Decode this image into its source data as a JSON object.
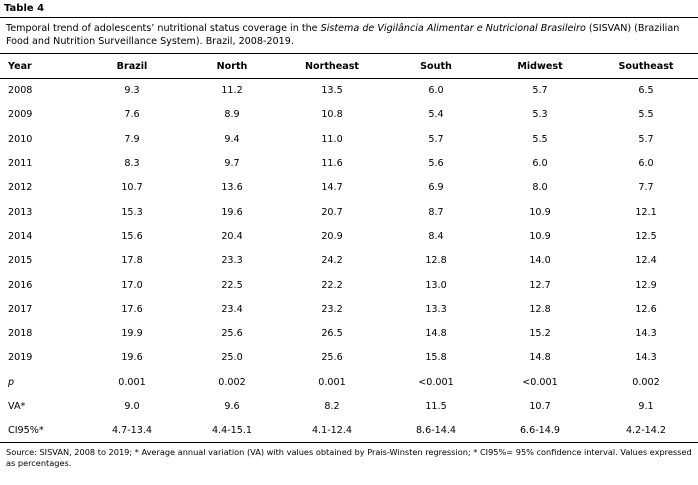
{
  "table_label": "Table 4",
  "caption": {
    "before": "Temporal trend of adolescents’ nutritional status coverage in the ",
    "italic": "Sistema de Vigilância Alimentar e Nutricional Brasileiro",
    "after": " (SISVAN) (Brazilian Food and Nutrition Surveillance System). Brazil, 2008-2019."
  },
  "columns": [
    "Year",
    "Brazil",
    "North",
    "Northeast",
    "South",
    "Midwest",
    "Southeast"
  ],
  "rows": [
    [
      "2008",
      "9.3",
      "11.2",
      "13.5",
      "6.0",
      "5.7",
      "6.5"
    ],
    [
      "2009",
      "7.6",
      "8.9",
      "10.8",
      "5.4",
      "5.3",
      "5.5"
    ],
    [
      "2010",
      "7.9",
      "9.4",
      "11.0",
      "5.7",
      "5.5",
      "5.7"
    ],
    [
      "2011",
      "8.3",
      "9.7",
      "11.6",
      "5.6",
      "6.0",
      "6.0"
    ],
    [
      "2012",
      "10.7",
      "13.6",
      "14.7",
      "6.9",
      "8.0",
      "7.7"
    ],
    [
      "2013",
      "15.3",
      "19.6",
      "20.7",
      "8.7",
      "10.9",
      "12.1"
    ],
    [
      "2014",
      "15.6",
      "20.4",
      "20.9",
      "8.4",
      "10.9",
      "12.5"
    ],
    [
      "2015",
      "17.8",
      "23.3",
      "24.2",
      "12.8",
      "14.0",
      "12.4"
    ],
    [
      "2016",
      "17.0",
      "22.5",
      "22.2",
      "13.0",
      "12.7",
      "12.9"
    ],
    [
      "2017",
      "17.6",
      "23.4",
      "23.2",
      "13.3",
      "12.8",
      "12.6"
    ],
    [
      "2018",
      "19.9",
      "25.6",
      "26.5",
      "14.8",
      "15.2",
      "14.3"
    ],
    [
      "2019",
      "19.6",
      "25.0",
      "25.6",
      "15.8",
      "14.8",
      "14.3"
    ],
    [
      "p",
      "0.001",
      "0.002",
      "0.001",
      "<0.001",
      "<0.001",
      "0.002"
    ],
    [
      "VA*",
      "9.0",
      "9.6",
      "8.2",
      "11.5",
      "10.7",
      "9.1"
    ],
    [
      "CI95%*",
      "4.7-13.4",
      "4.4-15.1",
      "4.1-12.4",
      "8.6-14.4",
      "6.6-14.9",
      "4.2-14.2"
    ]
  ],
  "footnote": "Source: SISVAN, 2008 to 2019; * Average annual variation (VA) with values obtained by Prais-Winsten regression; * CI95%= 95% confidence interval. Values expressed as percentages."
}
